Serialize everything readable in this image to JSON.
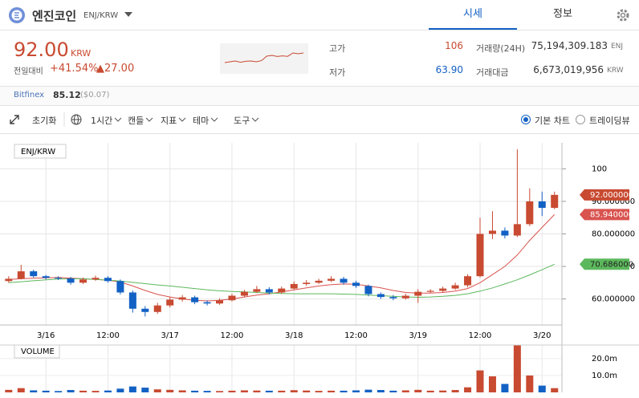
{
  "header": {
    "coin": "엔진코인",
    "pair": "ENJ/KRW",
    "tabs": [
      "시세",
      "정보"
    ]
  },
  "price": {
    "value": "92.00",
    "unit": "KRW",
    "change_label": "전일대비",
    "change_rate": "+41.54%",
    "change": "▲27.00"
  },
  "stats": {
    "high_label": "고가",
    "high": "106",
    "low_label": "저가",
    "low": "63.90",
    "volume_label": "거래량(24H)",
    "volume": "75,194,309.183",
    "volume_unit": "ENJ",
    "amount_label": "거래대금",
    "amount": "6,673,019,956",
    "amount_unit": "KRW"
  },
  "exchange": {
    "name": "Bitfinex",
    "price": "85.12",
    "usd": "($0.07)"
  },
  "toolbar": {
    "reset": "초기화",
    "interval": "1시간",
    "menus": [
      "캔들",
      "지표",
      "테마",
      "도구"
    ],
    "modes": [
      "기본 차트",
      "트레이딩뷰"
    ]
  },
  "sparkline": {
    "color": "#c84a31",
    "ylim": [
      55,
      70
    ],
    "values": [
      60,
      60.5,
      61,
      60.2,
      60.8,
      61,
      60.5,
      61.2,
      64,
      64.5,
      63.8,
      64.2,
      63.9,
      66,
      65.5,
      66
    ]
  },
  "chart_data": [
    {
      "type": "candlestick",
      "title": "ENJ/KRW",
      "up_color": "#c84a31",
      "down_color": "#1261c4",
      "grid": true,
      "xlim": [
        -0.7,
        44.6
      ],
      "ylim": [
        52,
        108
      ],
      "xticks": [
        {
          "value": 3,
          "label": "3/16"
        },
        {
          "value": 8,
          "label": "12:00"
        },
        {
          "value": 13,
          "label": "3/17"
        },
        {
          "value": 18,
          "label": "12:00"
        },
        {
          "value": 23,
          "label": "3/18"
        },
        {
          "value": 28,
          "label": "12:00"
        },
        {
          "value": 33,
          "label": "3/19"
        },
        {
          "value": 38,
          "label": "12:00"
        },
        {
          "value": 43,
          "label": "3/20"
        }
      ],
      "yticks": [
        {
          "value": 60,
          "label": "60.000000"
        },
        {
          "value": 70,
          "label": "70.000000"
        },
        {
          "value": 80,
          "label": "80.000000"
        },
        {
          "value": 90,
          "label": "90.000000"
        },
        100
      ],
      "open": [
        65.5,
        66.2,
        68.5,
        67.0,
        66.5,
        66.3,
        65.0,
        66.0,
        66.5,
        65.5,
        62.0,
        57.0,
        56.0,
        58.0,
        59.8,
        60.5,
        59.0,
        58.6,
        59.6,
        61.0,
        62.2,
        63.0,
        62.0,
        63.2,
        64.6,
        65.0,
        65.6,
        66.2,
        65.0,
        64.0,
        61.5,
        60.6,
        60.2,
        61.0,
        62.2,
        62.5,
        63.2,
        64.2,
        67.0,
        80.0,
        81.0,
        79.5,
        83.0,
        90.0,
        88.0
      ],
      "high": [
        67.0,
        70.5,
        69.0,
        67.4,
        67.0,
        66.8,
        66.6,
        67.2,
        67.0,
        66.0,
        62.6,
        57.8,
        58.8,
        60.6,
        61.2,
        61.0,
        59.6,
        60.2,
        61.6,
        62.8,
        64.0,
        63.6,
        63.8,
        65.4,
        65.8,
        66.2,
        67.0,
        66.8,
        65.6,
        64.4,
        62.0,
        61.2,
        61.6,
        63.0,
        63.0,
        63.8,
        65.0,
        67.6,
        85.0,
        87.0,
        82.0,
        106.0,
        94.0,
        93.0,
        93.0
      ],
      "low": [
        65.0,
        66.0,
        66.6,
        66.0,
        65.8,
        64.4,
        64.6,
        65.6,
        65.0,
        61.4,
        55.8,
        54.6,
        55.4,
        57.4,
        59.2,
        58.4,
        58.0,
        58.2,
        59.2,
        60.6,
        61.8,
        61.4,
        61.6,
        62.8,
        64.0,
        64.6,
        65.2,
        64.4,
        63.4,
        60.8,
        60.0,
        59.6,
        59.8,
        58.8,
        61.8,
        62.0,
        62.8,
        63.6,
        66.6,
        78.4,
        78.6,
        79.0,
        82.4,
        85.5,
        87.6
      ],
      "close": [
        66.2,
        68.5,
        67.0,
        66.5,
        66.3,
        65.0,
        66.0,
        66.5,
        65.5,
        62.0,
        57.0,
        56.0,
        58.0,
        59.8,
        60.5,
        59.0,
        58.6,
        59.6,
        61.0,
        62.2,
        63.0,
        62.0,
        63.2,
        64.6,
        65.0,
        65.6,
        66.2,
        65.0,
        64.0,
        61.5,
        60.6,
        60.2,
        61.0,
        62.2,
        62.5,
        63.2,
        64.2,
        67.0,
        80.0,
        81.0,
        79.5,
        83.0,
        90.0,
        88.0,
        92.0
      ],
      "close_label": "92.000000",
      "series": [
        {
          "color": "#d9534f",
          "end_label": "85.940000",
          "values": [
            66.0,
            66.2,
            66.4,
            66.5,
            66.6,
            66.4,
            66.2,
            66.0,
            65.8,
            65.2,
            64.0,
            62.6,
            61.4,
            60.6,
            60.0,
            59.6,
            59.4,
            59.6,
            60.0,
            60.6,
            61.2,
            61.6,
            62.2,
            62.8,
            63.4,
            64.0,
            64.4,
            64.6,
            64.5,
            64.0,
            63.4,
            62.6,
            62.0,
            61.8,
            61.8,
            62.0,
            62.4,
            63.2,
            65.0,
            67.5,
            70.0,
            73.5,
            78.0,
            82.0,
            85.94
          ]
        },
        {
          "color": "#5cb85c",
          "end_label": "70.686000",
          "values": [
            65.0,
            65.3,
            65.6,
            65.9,
            66.1,
            66.2,
            66.2,
            66.0,
            65.8,
            65.5,
            65.1,
            64.7,
            64.3,
            64.0,
            63.6,
            63.2,
            62.8,
            62.5,
            62.3,
            62.2,
            62.0,
            61.8,
            61.7,
            61.6,
            61.6,
            61.6,
            61.6,
            61.5,
            61.4,
            61.2,
            61.0,
            60.8,
            60.6,
            60.5,
            60.6,
            60.8,
            61.1,
            61.6,
            62.4,
            63.4,
            64.6,
            65.9,
            67.4,
            69.0,
            70.686
          ]
        }
      ]
    },
    {
      "type": "bar",
      "title": "VOLUME",
      "xlim": [
        -0.7,
        44.6
      ],
      "ylim": [
        0,
        28000000
      ],
      "yticks": [
        {
          "value": 10000000,
          "label": "10.0m"
        },
        {
          "value": 20000000,
          "label": "20.0m"
        }
      ],
      "values": [
        1500000,
        2500000,
        1200000,
        1000000,
        800000,
        1400000,
        1000000,
        900000,
        1100000,
        2200000,
        3500000,
        2800000,
        1800000,
        1500000,
        1200000,
        1000000,
        900000,
        800000,
        1000000,
        1200000,
        1100000,
        1000000,
        1000000,
        1300000,
        1100000,
        900000,
        1000000,
        1000000,
        1200000,
        1600000,
        1400000,
        1000000,
        1200000,
        1500000,
        1000000,
        1100000,
        1400000,
        3000000,
        13000000,
        9500000,
        5000000,
        29000000,
        10000000,
        4000000,
        2500000
      ]
    }
  ]
}
